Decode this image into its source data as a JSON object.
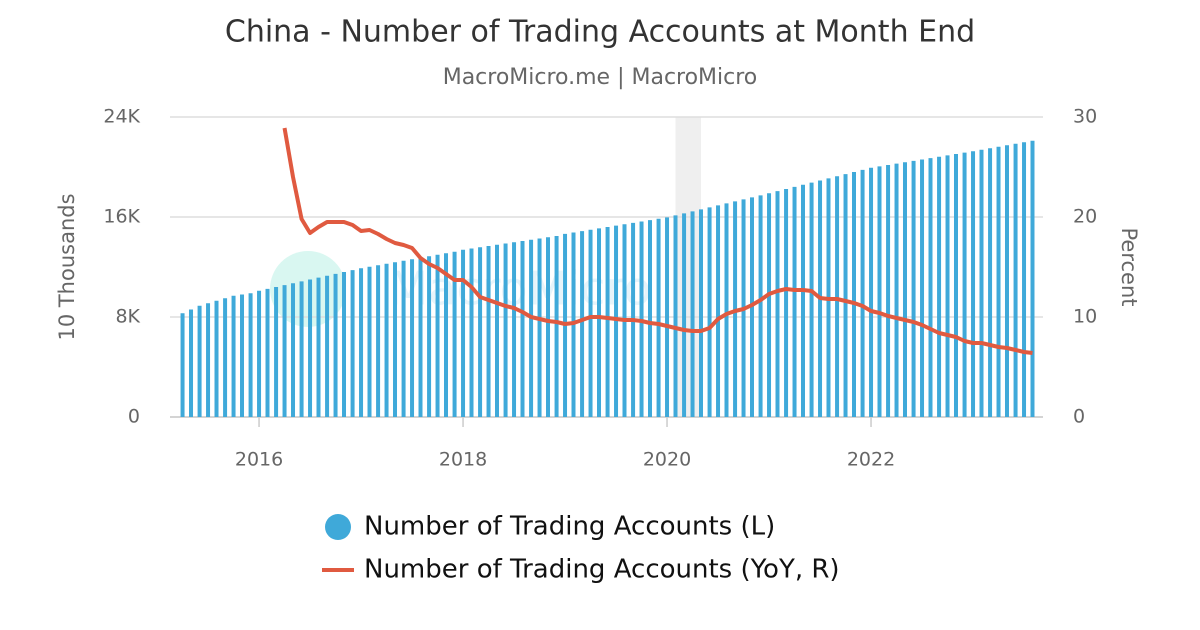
{
  "chart_data": {
    "type": "bar-line",
    "title": "China - Number of Trading Accounts at Month End",
    "subtitle": "MacroMicro.me | MacroMicro",
    "watermark": "MacroMicro",
    "ylabel": "10 Thousands",
    "y2label": "Percent",
    "xlim": [
      2015.127,
      2023.686
    ],
    "xticks": [
      2016,
      2018,
      2020,
      2022
    ],
    "ylim": [
      0,
      24000
    ],
    "yticks": [
      0,
      {
        "value": 8000,
        "label": "8K"
      },
      {
        "value": 16000,
        "label": "16K"
      },
      {
        "value": 24000,
        "label": "24K"
      }
    ],
    "y2lim": [
      0,
      30
    ],
    "y2ticks": [
      0,
      10,
      20,
      30
    ],
    "grid": true,
    "bands": [
      [
        2020.083,
        2020.333
      ]
    ],
    "x": [
      2015.25,
      2015.333,
      2015.417,
      2015.5,
      2015.583,
      2015.667,
      2015.75,
      2015.833,
      2015.917,
      2016,
      2016.083,
      2016.167,
      2016.25,
      2016.333,
      2016.417,
      2016.5,
      2016.583,
      2016.667,
      2016.75,
      2016.833,
      2016.917,
      2017,
      2017.083,
      2017.167,
      2017.25,
      2017.333,
      2017.417,
      2017.5,
      2017.583,
      2017.667,
      2017.75,
      2017.833,
      2017.917,
      2018,
      2018.083,
      2018.167,
      2018.25,
      2018.333,
      2018.417,
      2018.5,
      2018.583,
      2018.667,
      2018.75,
      2018.833,
      2018.917,
      2019,
      2019.083,
      2019.167,
      2019.25,
      2019.333,
      2019.417,
      2019.5,
      2019.583,
      2019.667,
      2019.75,
      2019.833,
      2019.917,
      2020,
      2020.083,
      2020.167,
      2020.25,
      2020.333,
      2020.417,
      2020.5,
      2020.583,
      2020.667,
      2020.75,
      2020.833,
      2020.917,
      2021,
      2021.083,
      2021.167,
      2021.25,
      2021.333,
      2021.417,
      2021.5,
      2021.583,
      2021.667,
      2021.75,
      2021.833,
      2021.917,
      2022,
      2022.083,
      2022.167,
      2022.25,
      2022.333,
      2022.417,
      2022.5,
      2022.583,
      2022.667,
      2022.75,
      2022.833,
      2022.917,
      2023,
      2023.083,
      2023.167,
      2023.25,
      2023.333,
      2023.417,
      2023.5,
      2023.583
    ],
    "series": [
      {
        "name": "Number of Trading Accounts (L)",
        "kind": "bar",
        "color": "#3fa9d9",
        "values": [
          8300,
          8600,
          8900,
          9100,
          9300,
          9500,
          9700,
          9800,
          9900,
          10100,
          10250,
          10400,
          10550,
          10700,
          10850,
          11000,
          11150,
          11300,
          11450,
          11600,
          11750,
          11900,
          12020,
          12140,
          12260,
          12380,
          12500,
          12620,
          12740,
          12860,
          12980,
          13100,
          13220,
          13380,
          13480,
          13580,
          13680,
          13780,
          13880,
          13980,
          14080,
          14180,
          14280,
          14380,
          14480,
          14650,
          14760,
          14870,
          14980,
          15090,
          15200,
          15310,
          15420,
          15530,
          15640,
          15750,
          15860,
          15970,
          16130,
          16290,
          16450,
          16610,
          16770,
          16930,
          17090,
          17250,
          17410,
          17570,
          17730,
          17900,
          18070,
          18240,
          18410,
          18580,
          18750,
          18920,
          19090,
          19260,
          19430,
          19600,
          19770,
          19940,
          20050,
          20160,
          20270,
          20380,
          20490,
          20600,
          20710,
          20820,
          20930,
          21040,
          21150,
          21260,
          21380,
          21500,
          21620,
          21740,
          21860,
          21980,
          22100
        ]
      },
      {
        "name": "Number of Trading Accounts (YoY, R)",
        "kind": "line",
        "axis": "y2",
        "color": "#e05a40",
        "values": [
          null,
          null,
          null,
          null,
          null,
          null,
          null,
          null,
          null,
          null,
          null,
          null,
          28.9,
          24,
          19.8,
          18.4,
          19.0,
          19.5,
          19.5,
          19.5,
          19.2,
          18.6,
          18.7,
          18.3,
          17.8,
          17.4,
          17.2,
          16.9,
          15.9,
          15.3,
          14.9,
          14.3,
          13.7,
          13.7,
          13.0,
          12.0,
          11.7,
          11.4,
          11.1,
          10.9,
          10.5,
          10.0,
          9.8,
          9.6,
          9.5,
          9.3,
          9.4,
          9.7,
          10.0,
          10.0,
          9.9,
          9.8,
          9.7,
          9.7,
          9.6,
          9.4,
          9.3,
          9.1,
          8.9,
          8.7,
          8.6,
          8.6,
          8.9,
          9.8,
          10.3,
          10.6,
          10.8,
          11.2,
          11.7,
          12.3,
          12.6,
          12.8,
          12.7,
          12.7,
          12.6,
          11.9,
          11.8,
          11.8,
          11.6,
          11.4,
          11.1,
          10.6,
          10.4,
          10.1,
          9.9,
          9.7,
          9.5,
          9.2,
          8.8,
          8.4,
          8.2,
          8.0,
          7.6,
          7.4,
          7.4,
          7.2,
          7.0,
          6.9,
          6.7,
          6.5,
          6.4
        ]
      }
    ]
  }
}
